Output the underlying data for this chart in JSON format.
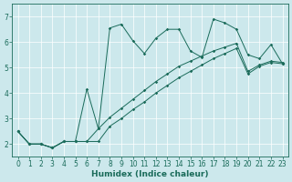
{
  "xlabel": "Humidex (Indice chaleur)",
  "bg_color": "#cce8ec",
  "line_color": "#1a6b5a",
  "xlim": [
    -0.5,
    23.5
  ],
  "ylim": [
    1.5,
    7.5
  ],
  "xticks": [
    0,
    1,
    2,
    3,
    4,
    5,
    6,
    7,
    8,
    9,
    10,
    11,
    12,
    13,
    14,
    15,
    16,
    17,
    18,
    19,
    20,
    21,
    22,
    23
  ],
  "yticks": [
    2,
    3,
    4,
    5,
    6,
    7
  ],
  "line1_x": [
    0,
    1,
    2,
    3,
    4,
    5,
    6,
    7,
    8,
    9,
    10,
    11,
    12,
    13,
    14,
    15,
    16,
    17,
    18,
    19,
    20,
    21,
    22,
    23
  ],
  "line1_y": [
    2.5,
    2.0,
    2.0,
    1.85,
    2.1,
    2.1,
    2.1,
    2.1,
    2.7,
    3.0,
    3.35,
    3.65,
    4.0,
    4.3,
    4.6,
    4.85,
    5.1,
    5.35,
    5.55,
    5.75,
    4.75,
    5.05,
    5.2,
    5.15
  ],
  "line2_x": [
    0,
    1,
    2,
    3,
    4,
    5,
    6,
    7,
    8,
    9,
    10,
    11,
    12,
    13,
    14,
    15,
    16,
    17,
    18,
    19,
    20,
    21,
    22,
    23
  ],
  "line2_y": [
    2.5,
    2.0,
    2.0,
    1.85,
    2.1,
    2.1,
    2.1,
    2.6,
    3.05,
    3.4,
    3.75,
    4.1,
    4.45,
    4.75,
    5.05,
    5.25,
    5.45,
    5.65,
    5.8,
    5.95,
    4.85,
    5.1,
    5.25,
    5.2
  ],
  "line3_x": [
    0,
    1,
    2,
    3,
    4,
    5,
    6,
    7,
    8,
    9,
    10,
    11,
    12,
    13,
    14,
    15,
    16,
    17,
    18,
    19,
    20,
    21,
    22,
    23
  ],
  "line3_y": [
    2.5,
    2.0,
    2.0,
    1.85,
    2.1,
    2.1,
    4.15,
    2.6,
    6.55,
    6.7,
    6.05,
    5.55,
    6.15,
    6.5,
    6.5,
    5.65,
    5.4,
    6.9,
    6.75,
    6.5,
    5.5,
    5.35,
    5.9,
    5.15
  ],
  "grid_color": "#ffffff",
  "font_color": "#1a6b5a",
  "tick_fontsize": 5.5,
  "xlabel_fontsize": 6.5
}
